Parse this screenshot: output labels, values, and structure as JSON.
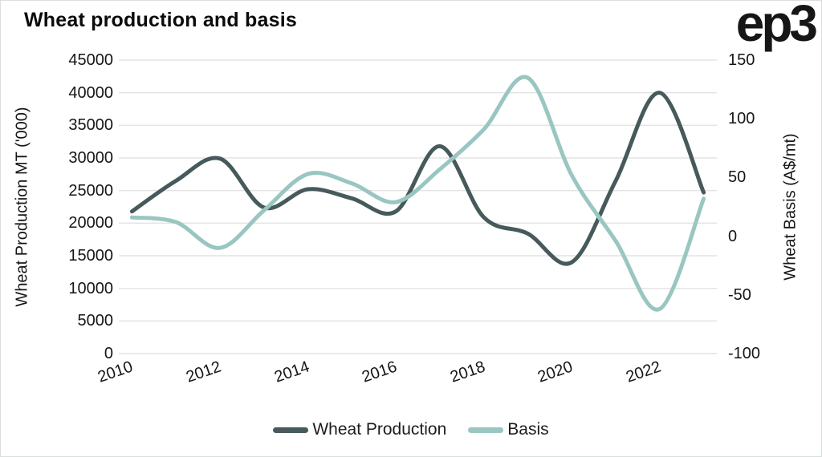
{
  "header": {
    "title": "Wheat production and basis",
    "logo_text": "ep3"
  },
  "chart_data": {
    "type": "line",
    "x": [
      2010,
      2011,
      2012,
      2013,
      2014,
      2015,
      2016,
      2017,
      2018,
      2019,
      2020,
      2021,
      2022,
      2023
    ],
    "x_tick_labels": [
      "2010",
      "2012",
      "2014",
      "2016",
      "2018",
      "2020",
      "2022"
    ],
    "series": [
      {
        "name": "Wheat Production",
        "axis": "left",
        "color": "#46595b",
        "values": [
          21800,
          26500,
          29900,
          22400,
          25200,
          23800,
          21800,
          31800,
          20900,
          18400,
          14000,
          26500,
          40000,
          24700
        ]
      },
      {
        "name": "Basis",
        "axis": "right",
        "color": "#9ac6c1",
        "values": [
          16,
          12,
          -10,
          22,
          53,
          45,
          29,
          57,
          91,
          135,
          52,
          -4,
          -62,
          32
        ]
      }
    ],
    "left_axis": {
      "label": "Wheat Production MT ('000)",
      "ticks": [
        45000,
        40000,
        35000,
        30000,
        25000,
        20000,
        15000,
        10000,
        5000,
        0
      ],
      "range": [
        0,
        45000
      ]
    },
    "right_axis": {
      "label": "Wheat Basis (A$/mt)",
      "ticks": [
        150,
        100,
        50,
        0,
        -50,
        -100
      ],
      "range": [
        -100,
        150
      ]
    },
    "grid": "horizontal",
    "grid_color": "#e3e3e3",
    "background": "#ffffff",
    "legend_position": "bottom"
  },
  "legend": {
    "items": [
      {
        "label": "Wheat Production",
        "color": "#46595b"
      },
      {
        "label": "Basis",
        "color": "#9ac6c1"
      }
    ]
  }
}
